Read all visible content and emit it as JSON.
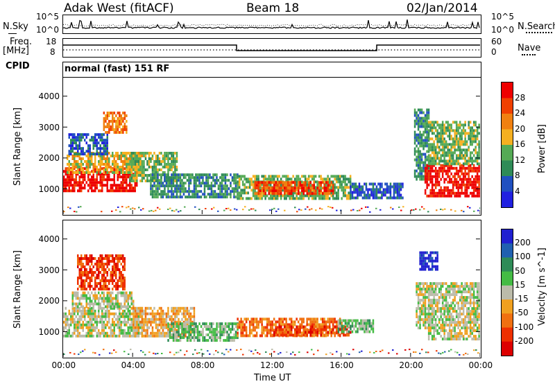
{
  "header": {
    "station": "Adak West (fitACF)",
    "beam": "Beam 18",
    "date": "02/Jan/2014"
  },
  "left_labels": {
    "nsky": "N.Sky",
    "freq": "Freq.",
    "mhz": "[MHz]",
    "cpid": "CPID"
  },
  "right_labels": {
    "nsearch": "N.Search",
    "nave": "Nave"
  },
  "noise_axis": {
    "top": "10^5",
    "bottom": "10^0",
    "top_right": "10^5",
    "bottom_right": "10^0"
  },
  "freq_axis": {
    "top": "18",
    "bottom": "8"
  },
  "nave_axis": {
    "top": "60",
    "bottom": "0"
  },
  "cpid_text": "normal (fast) 151 RF",
  "colors": {
    "power_scale": [
      "#2020e0",
      "#2050c0",
      "#2e8b57",
      "#55aa55",
      "#f5b020",
      "#f08010",
      "#f04000",
      "#ee0000"
    ],
    "velocity_scale": [
      "#2020d0",
      "#2060b0",
      "#2e8b57",
      "#44bb44",
      "#bbbbaa",
      "#f0a020",
      "#f07010",
      "#ee3000",
      "#dd0000"
    ]
  },
  "chart_data": [
    {
      "type": "heatmap",
      "name": "power_panel",
      "ylabel": "Slant Range [km]",
      "xlabel": "Time UT",
      "x_ticks": [
        "00:00",
        "04:00",
        "08:00",
        "12:00",
        "16:00",
        "20:00",
        "00:00"
      ],
      "x_hours": [
        0,
        4,
        8,
        12,
        16,
        20,
        24
      ],
      "y_ticks": [
        1000,
        2000,
        3000,
        4000
      ],
      "ylim": [
        180,
        4600
      ],
      "colorbar_label": "Power [dB]",
      "colorbar_ticks": [
        "4",
        "8",
        "12",
        "16",
        "20",
        "24",
        "28"
      ],
      "regions": [
        {
          "t0": 0.0,
          "t1": 4.2,
          "r0": 900,
          "r1": 1700,
          "level": 7
        },
        {
          "t0": 0.2,
          "t1": 4.5,
          "r0": 1500,
          "r1": 2200,
          "level": 4
        },
        {
          "t0": 0.3,
          "t1": 2.5,
          "r0": 2100,
          "r1": 2800,
          "level": 1
        },
        {
          "t0": 2.3,
          "t1": 3.6,
          "r0": 2800,
          "r1": 3500,
          "level": 5
        },
        {
          "t0": 3.8,
          "t1": 6.5,
          "r0": 1300,
          "r1": 2200,
          "level": 3
        },
        {
          "t0": 5.0,
          "t1": 10.0,
          "r0": 700,
          "r1": 1500,
          "level": 2
        },
        {
          "t0": 10.0,
          "t1": 16.5,
          "r0": 700,
          "r1": 1450,
          "level": 3
        },
        {
          "t0": 11.0,
          "t1": 15.5,
          "r0": 850,
          "r1": 1250,
          "level": 6
        },
        {
          "t0": 16.5,
          "t1": 19.5,
          "r0": 750,
          "r1": 1200,
          "level": 1
        },
        {
          "t0": 20.2,
          "t1": 21.0,
          "r0": 1300,
          "r1": 3600,
          "level": 2
        },
        {
          "t0": 20.8,
          "t1": 24.0,
          "r0": 800,
          "r1": 1800,
          "level": 7
        },
        {
          "t0": 21.0,
          "t1": 24.0,
          "r0": 1800,
          "r1": 3200,
          "level": 3
        }
      ]
    },
    {
      "type": "heatmap",
      "name": "velocity_panel",
      "ylabel": "Slant Range [km]",
      "xlabel": "Time UT",
      "x_ticks": [
        "00:00",
        "04:00",
        "08:00",
        "12:00",
        "16:00",
        "20:00",
        "00:00"
      ],
      "x_hours": [
        0,
        4,
        8,
        12,
        16,
        20,
        24
      ],
      "y_ticks": [
        1000,
        2000,
        3000,
        4000
      ],
      "ylim": [
        180,
        4600
      ],
      "colorbar_label": "Velocity [m s^-1]",
      "colorbar_ticks": [
        "200",
        "100",
        "50",
        "15",
        "-15",
        "-50",
        "-100",
        "-200"
      ],
      "regions": [
        {
          "t0": 0.0,
          "t1": 4.5,
          "r0": 900,
          "r1": 1800,
          "level": 4
        },
        {
          "t0": 0.5,
          "t1": 4.0,
          "r0": 1800,
          "r1": 2300,
          "level": 4
        },
        {
          "t0": 0.8,
          "t1": 3.5,
          "r0": 2400,
          "r1": 3500,
          "level": 7
        },
        {
          "t0": 4.0,
          "t1": 7.5,
          "r0": 900,
          "r1": 1800,
          "level": 5
        },
        {
          "t0": 6.0,
          "t1": 10.0,
          "r0": 700,
          "r1": 1300,
          "level": 3
        },
        {
          "t0": 10.0,
          "t1": 16.0,
          "r0": 850,
          "r1": 1450,
          "level": 6
        },
        {
          "t0": 12.0,
          "t1": 16.5,
          "r0": 850,
          "r1": 1200,
          "level": 7
        },
        {
          "t0": 15.8,
          "t1": 17.8,
          "r0": 1000,
          "r1": 1400,
          "level": 3
        },
        {
          "t0": 20.3,
          "t1": 21.2,
          "r0": 1100,
          "r1": 2600,
          "level": 4
        },
        {
          "t0": 20.5,
          "t1": 21.5,
          "r0": 3000,
          "r1": 3600,
          "level": 0
        },
        {
          "t0": 21.0,
          "t1": 24.0,
          "r0": 800,
          "r1": 2600,
          "level": 4
        }
      ]
    }
  ]
}
